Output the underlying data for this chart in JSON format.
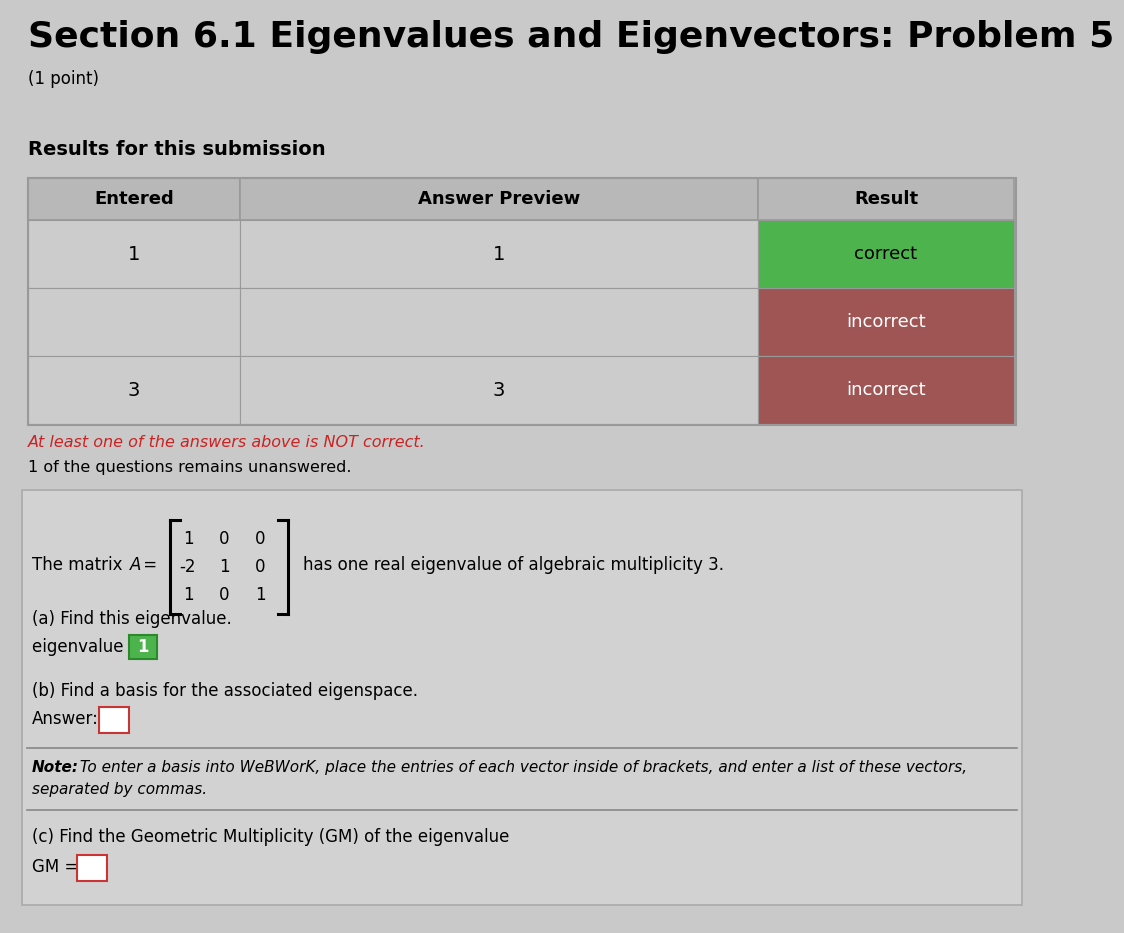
{
  "title": "Section 6.1 Eigenvalues and Eigenvectors: Problem 5",
  "subtitle": "(1 point)",
  "page_bg": "#c9c9c9",
  "results_title": "Results for this submission",
  "table_headers": [
    "Entered",
    "Answer Preview",
    "Result"
  ],
  "table_rows": [
    {
      "entered": "1",
      "preview": "1",
      "result": "correct",
      "result_color": "#4db34d"
    },
    {
      "entered": "",
      "preview": "",
      "result": "incorrect",
      "result_color": "#a05555"
    },
    {
      "entered": "3",
      "preview": "3",
      "result": "incorrect",
      "result_color": "#a05555"
    }
  ],
  "warning_text": "At least one of the answers above is NOT correct.",
  "warning_color": "#cc2222",
  "unanswered_text": "1 of the questions remains unanswered.",
  "problem_box_bg": "#d2d2d2",
  "problem_box_border": "#aaaaaa",
  "matrix_intro": "The matrix ",
  "matrix_A": "A",
  "matrix_eq": " = ",
  "matrix": [
    [
      1,
      0,
      0
    ],
    [
      -2,
      1,
      0
    ],
    [
      1,
      0,
      1
    ]
  ],
  "matrix_desc": "has one real eigenvalue of algebraic multiplicity 3.",
  "part_a_label": "(a) Find this eigenvalue.",
  "eigenvalue_label": "eigenvalue = ",
  "eigenvalue_value": "1",
  "eigenvalue_box_color": "#4db34d",
  "eigenvalue_box_border": "#2a8a2a",
  "part_b_label": "(b) Find a basis for the associated eigenspace.",
  "answer_label": "Answer:",
  "note_italic": "Note:",
  "note_rest": " To enter a basis into WeBWorK, place the entries of each vector inside of brackets, and enter a list of these vectors,\nseparated by commas.",
  "part_c_label": "(c) Find the Geometric Multiplicity (GM) of the eigenvalue",
  "gm_label": "GM = ",
  "header_bg": "#b8b8b8",
  "cell_bg_light": "#cccccc",
  "cell_bg_dark": "#c0c0c0",
  "table_border": "#999999",
  "correct_text_color": "#000000",
  "incorrect_text_color": "#ffffff"
}
